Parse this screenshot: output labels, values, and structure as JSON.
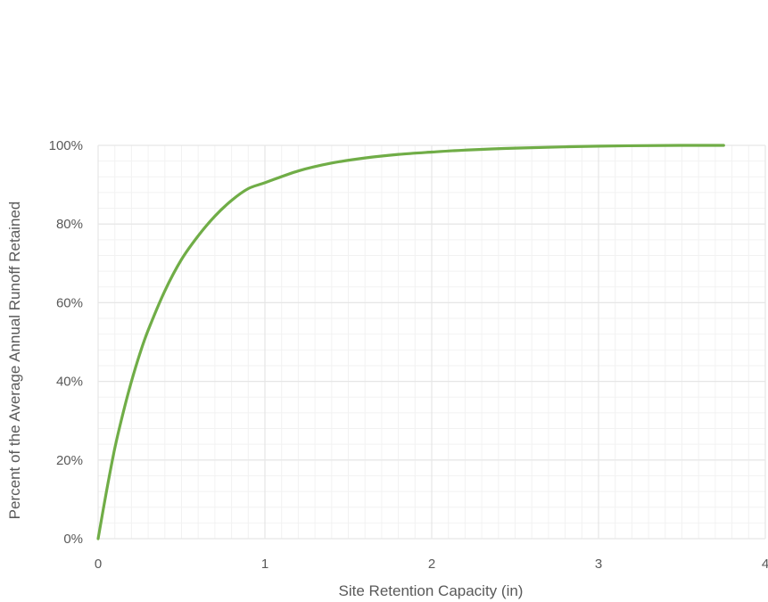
{
  "chart_data": {
    "type": "line",
    "title": "",
    "xlabel": "Site Retention Capacity (in)",
    "ylabel": "Percent of the Average Annual Runoff Retained",
    "xlim": [
      0,
      4
    ],
    "ylim": [
      0,
      100
    ],
    "x_ticks": [
      "0",
      "1",
      "2",
      "3",
      "4"
    ],
    "y_ticks": [
      "0%",
      "20%",
      "40%",
      "60%",
      "80%",
      "100%"
    ],
    "grid": true,
    "legend": "none",
    "colors": {
      "series": "#70ad47",
      "grid": "#e6e6e6",
      "axis_text": "#595959"
    },
    "series": [
      {
        "x": [
          0,
          0.05,
          0.1,
          0.15,
          0.2,
          0.25,
          0.3,
          0.4,
          0.5,
          0.6,
          0.7,
          0.8,
          0.9,
          1.0,
          1.2,
          1.4,
          1.6,
          1.8,
          2.0,
          2.2,
          2.5,
          3.0,
          3.5,
          3.75
        ],
        "y": [
          0,
          12,
          23,
          32,
          40,
          47,
          53,
          63,
          71,
          77,
          82,
          86,
          89,
          90.5,
          93.5,
          95.5,
          96.8,
          97.7,
          98.3,
          98.8,
          99.3,
          99.8,
          100,
          100
        ]
      }
    ]
  }
}
